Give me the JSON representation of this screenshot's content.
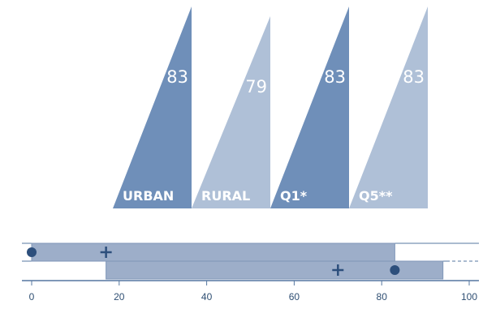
{
  "chart_data": [
    {
      "type": "bar",
      "categories": [
        "URBAN",
        "RURAL",
        "Q1*",
        "Q5**"
      ],
      "values": [
        83,
        79,
        83,
        83
      ],
      "value_labels": [
        "83",
        "79",
        "83",
        "83"
      ],
      "colors": [
        "#6f8fb9",
        "#afc0d7",
        "#6f8fb9",
        "#afc0d7"
      ]
    },
    {
      "type": "range",
      "xlim": [
        0,
        100
      ],
      "ticks": [
        "0",
        "20",
        "40",
        "60",
        "80",
        "100"
      ],
      "rows": [
        {
          "start": 0,
          "end": 83,
          "dot": 0,
          "plus": 17
        },
        {
          "start": 17,
          "end": 94,
          "dot": 83,
          "plus": 70
        }
      ],
      "colors": {
        "bar": "#9daec9",
        "bar_stroke": "#7f96b8",
        "marker": "#2d4f7c",
        "axis": "#5577a0"
      }
    }
  ]
}
